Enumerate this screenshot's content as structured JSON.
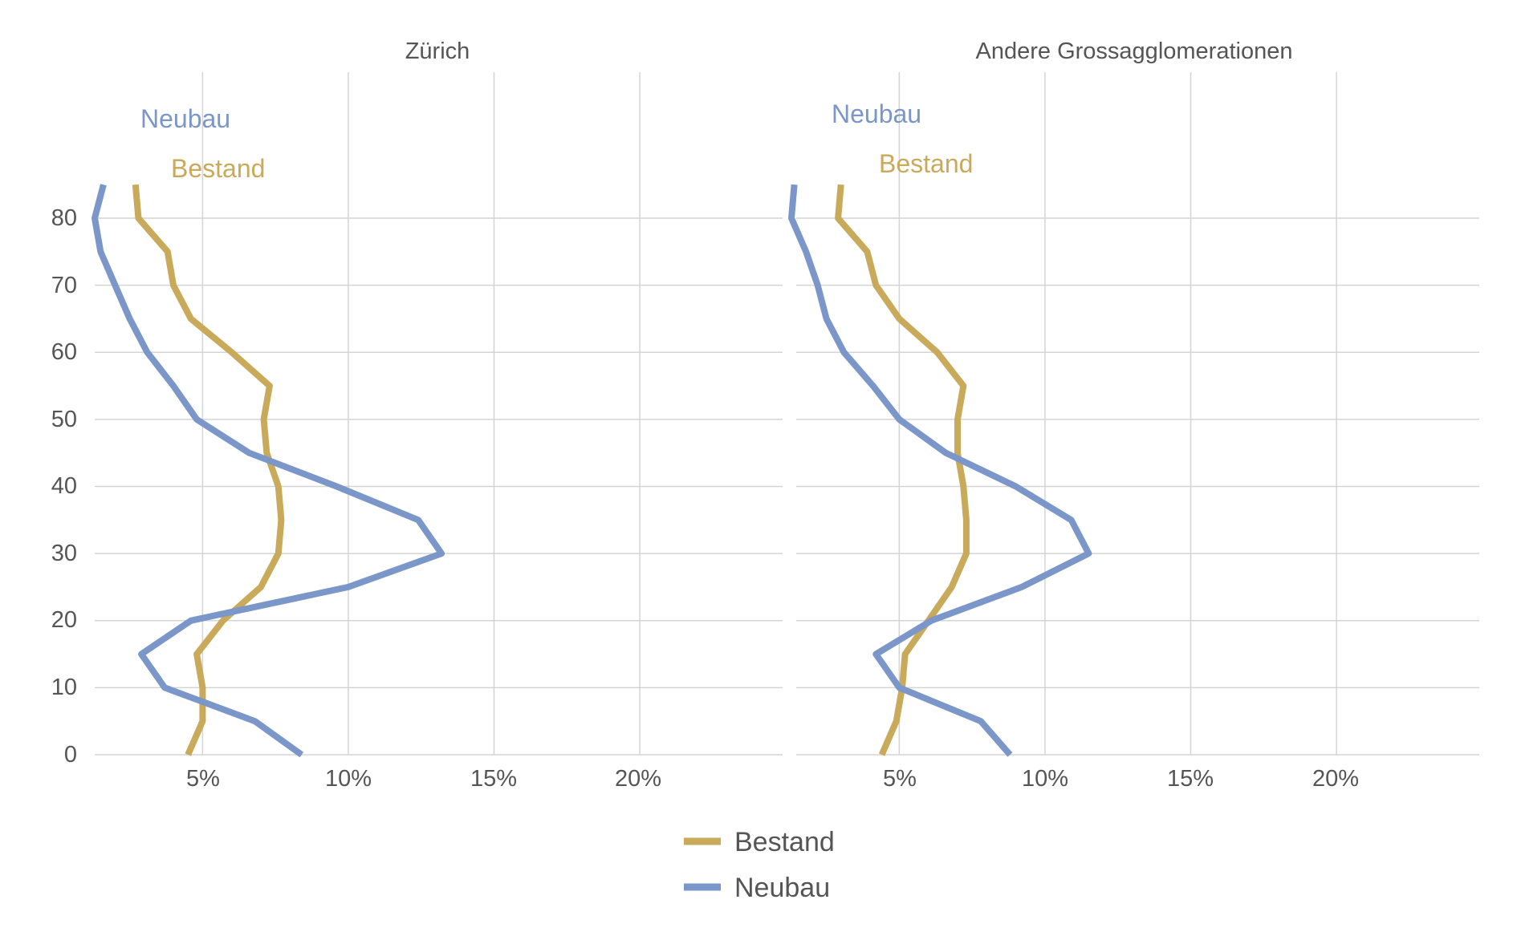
{
  "chart_data": [
    {
      "type": "line",
      "title": "Zürich",
      "orientation": "horizontal-profile",
      "x_unit": "%",
      "xlim": [
        1.3,
        24.9
      ],
      "ylim": [
        0,
        85
      ],
      "x_ticks": [
        5,
        10,
        15,
        20
      ],
      "x_tick_labels": [
        "5%",
        "10%",
        "15%",
        "20%"
      ],
      "y_ticks": [
        0,
        10,
        20,
        30,
        40,
        50,
        60,
        70,
        80
      ],
      "y_tick_labels": [
        "0",
        "10",
        "20",
        "30",
        "40",
        "50",
        "60",
        "70",
        "80"
      ],
      "grid": true,
      "series": [
        {
          "name": "Neubau",
          "color": "#7b96c8",
          "points": [
            [
              8.4,
              0
            ],
            [
              6.8,
              5
            ],
            [
              3.7,
              10
            ],
            [
              2.9,
              15
            ],
            [
              4.6,
              20
            ],
            [
              10.0,
              25
            ],
            [
              13.2,
              30
            ],
            [
              12.4,
              35
            ],
            [
              9.6,
              40
            ],
            [
              6.6,
              45
            ],
            [
              4.8,
              50
            ],
            [
              4.0,
              55
            ],
            [
              3.1,
              60
            ],
            [
              2.5,
              65
            ],
            [
              2.0,
              70
            ],
            [
              1.5,
              75
            ],
            [
              1.3,
              80
            ],
            [
              1.6,
              85
            ]
          ]
        },
        {
          "name": "Bestand",
          "color": "#c9a95a",
          "points": [
            [
              4.5,
              0
            ],
            [
              5.0,
              5
            ],
            [
              5.0,
              10
            ],
            [
              4.8,
              15
            ],
            [
              5.7,
              20
            ],
            [
              7.0,
              25
            ],
            [
              7.6,
              30
            ],
            [
              7.7,
              35
            ],
            [
              7.6,
              40
            ],
            [
              7.2,
              45
            ],
            [
              7.1,
              50
            ],
            [
              7.3,
              55
            ],
            [
              6.0,
              60
            ],
            [
              4.6,
              65
            ],
            [
              4.0,
              70
            ],
            [
              3.8,
              75
            ],
            [
              2.8,
              80
            ],
            [
              2.7,
              85
            ]
          ]
        }
      ],
      "annotations": [
        {
          "text": "Neubau",
          "series": "Neubau"
        },
        {
          "text": "Bestand",
          "series": "Bestand"
        }
      ]
    },
    {
      "type": "line",
      "title": "Andere Grossagglomerationen",
      "orientation": "horizontal-profile",
      "x_unit": "%",
      "xlim": [
        1.3,
        24.9
      ],
      "ylim": [
        0,
        85
      ],
      "x_ticks": [
        5,
        10,
        15,
        20
      ],
      "x_tick_labels": [
        "5%",
        "10%",
        "15%",
        "20%"
      ],
      "y_ticks": [
        0,
        10,
        20,
        30,
        40,
        50,
        60,
        70,
        80
      ],
      "grid": true,
      "series": [
        {
          "name": "Neubau",
          "color": "#7b96c8",
          "points": [
            [
              8.8,
              0
            ],
            [
              7.8,
              5
            ],
            [
              5.0,
              10
            ],
            [
              4.2,
              15
            ],
            [
              6.1,
              20
            ],
            [
              9.2,
              25
            ],
            [
              11.5,
              30
            ],
            [
              10.9,
              35
            ],
            [
              9.0,
              40
            ],
            [
              6.6,
              45
            ],
            [
              5.0,
              50
            ],
            [
              4.1,
              55
            ],
            [
              3.1,
              60
            ],
            [
              2.5,
              65
            ],
            [
              2.2,
              70
            ],
            [
              1.8,
              75
            ],
            [
              1.3,
              80
            ],
            [
              1.4,
              85
            ]
          ]
        },
        {
          "name": "Bestand",
          "color": "#c9a95a",
          "points": [
            [
              4.4,
              0
            ],
            [
              4.9,
              5
            ],
            [
              5.1,
              10
            ],
            [
              5.2,
              15
            ],
            [
              6.0,
              20
            ],
            [
              6.8,
              25
            ],
            [
              7.3,
              30
            ],
            [
              7.3,
              35
            ],
            [
              7.2,
              40
            ],
            [
              7.0,
              45
            ],
            [
              7.0,
              50
            ],
            [
              7.2,
              55
            ],
            [
              6.3,
              60
            ],
            [
              5.0,
              65
            ],
            [
              4.2,
              70
            ],
            [
              3.9,
              75
            ],
            [
              2.9,
              80
            ],
            [
              3.0,
              85
            ]
          ]
        }
      ],
      "annotations": [
        {
          "text": "Neubau",
          "series": "Neubau"
        },
        {
          "text": "Bestand",
          "series": "Bestand"
        }
      ]
    }
  ],
  "legend": {
    "placement": "bottom-center",
    "items": [
      {
        "label": "Bestand",
        "color": "#c9a95a"
      },
      {
        "label": "Neubau",
        "color": "#7b96c8"
      }
    ]
  }
}
